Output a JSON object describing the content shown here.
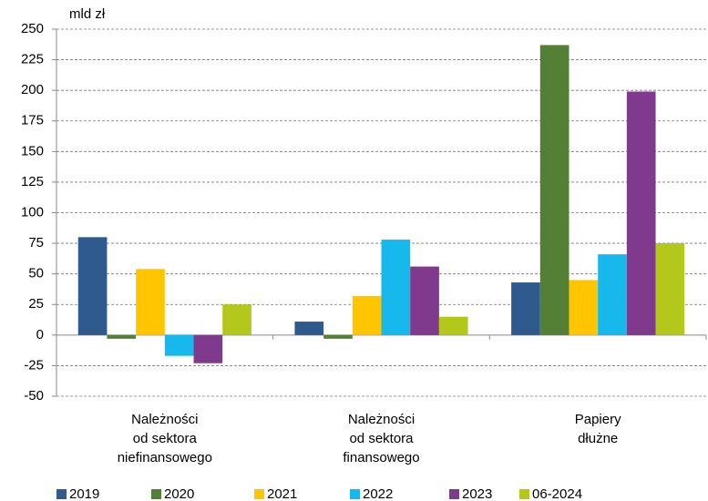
{
  "chart_data": {
    "type": "bar",
    "y_unit": "mld zł",
    "categories": [
      [
        "Należności",
        "od sektora",
        "niefinansowego"
      ],
      [
        "Należności",
        "od sektora",
        "finansowego"
      ],
      [
        "Papiery",
        "dłużne"
      ]
    ],
    "series": [
      {
        "name": "2019",
        "color": "#2f5a8d",
        "values": [
          80,
          11,
          43
        ]
      },
      {
        "name": "2020",
        "color": "#538035",
        "values": [
          -3,
          -3,
          237
        ]
      },
      {
        "name": "2021",
        "color": "#ffc600",
        "values": [
          54,
          32,
          45
        ]
      },
      {
        "name": "2022",
        "color": "#17b8ec",
        "values": [
          -17,
          78,
          66
        ]
      },
      {
        "name": "2023",
        "color": "#7f3a8e",
        "values": [
          -23,
          56,
          199
        ]
      },
      {
        "name": "06-2024",
        "color": "#b3c81a",
        "values": [
          25,
          15,
          75
        ]
      }
    ],
    "ylim": [
      -50,
      250
    ],
    "yticks": [
      -50,
      -25,
      0,
      25,
      50,
      75,
      100,
      125,
      150,
      175,
      200,
      225,
      250
    ],
    "grid": true,
    "legend": "bottom"
  }
}
